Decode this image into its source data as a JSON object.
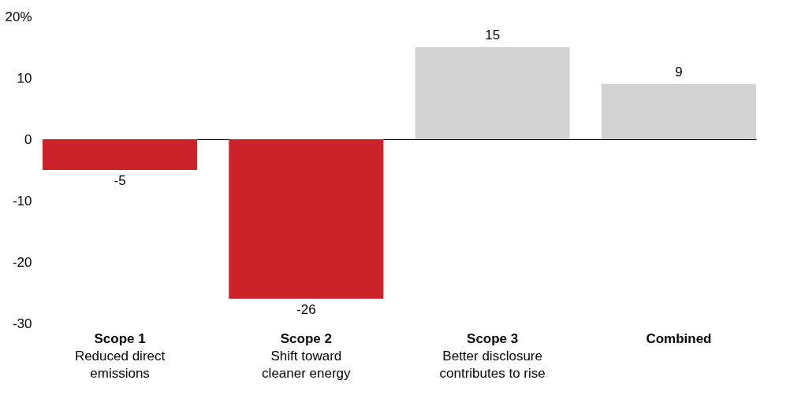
{
  "chart_data": {
    "type": "bar",
    "categories": [
      "Scope 1\nReduced direct\nemissions",
      "Scope 2\nShift toward\ncleaner energy",
      "Scope 3\nBetter disclosure\ncontributes to rise",
      "Combined"
    ],
    "values": [
      -5,
      -26,
      15,
      9
    ],
    "colors": [
      "#cc2229",
      "#cc2229",
      "#d3d3d3",
      "#d3d3d3"
    ],
    "ylim": [
      -30,
      20
    ],
    "yticks": [
      -30,
      -20,
      -10,
      0,
      10,
      {
        "value": 20,
        "label": "20%"
      }
    ],
    "data_labels": true
  }
}
